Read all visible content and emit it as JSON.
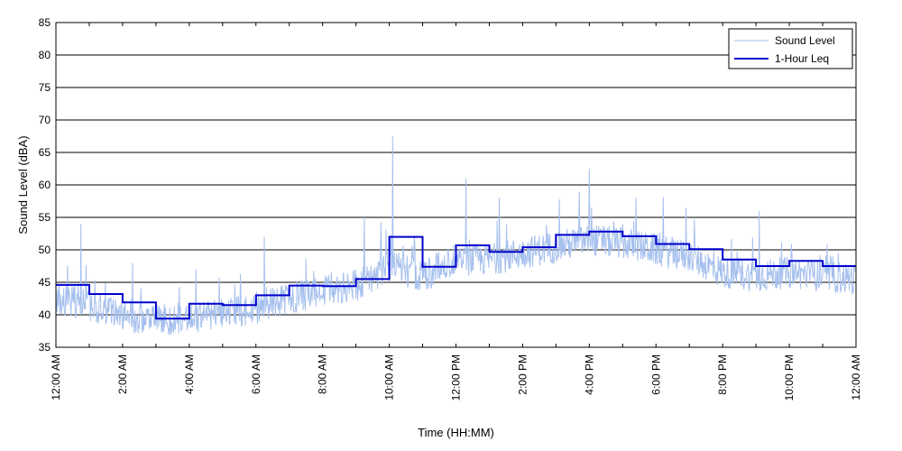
{
  "chart_data": {
    "type": "line",
    "xlabel": "Time (HH:MM)",
    "ylabel": "Sound Level (dBA)",
    "ylim": [
      35,
      85
    ],
    "yticks": [
      35,
      40,
      45,
      50,
      55,
      60,
      65,
      70,
      75,
      80,
      85
    ],
    "xlim_hours": [
      0,
      24
    ],
    "xtick_hours": [
      0,
      2,
      4,
      6,
      8,
      10,
      12,
      14,
      16,
      18,
      20,
      22,
      24
    ],
    "xtick_labels": [
      "12:00 AM",
      "2:00 AM",
      "4:00 AM",
      "6:00 AM",
      "8:00 AM",
      "10:00 AM",
      "12:00 PM",
      "2:00 PM",
      "4:00 PM",
      "6:00 PM",
      "8:00 PM",
      "10:00 PM",
      "12:00 AM"
    ],
    "grid": "horizontal",
    "legend_position": "top-right",
    "series": [
      {
        "name": "Sound Level",
        "color": "#a6c0ee",
        "hourly_base": [
          42.5,
          41.5,
          40.0,
          39.0,
          39.5,
          40.0,
          41.0,
          42.5,
          43.5,
          44.5,
          47.5,
          46.0,
          48.5,
          48.5,
          49.5,
          50.5,
          51.5,
          51.0,
          50.0,
          49.0,
          46.5,
          46.0,
          46.5,
          46.0,
          45.5
        ],
        "peaks": [
          {
            "hour": 0.75,
            "value": 54
          },
          {
            "hour": 2.3,
            "value": 48
          },
          {
            "hour": 4.2,
            "value": 47
          },
          {
            "hour": 6.25,
            "value": 52
          },
          {
            "hour": 9.25,
            "value": 55
          },
          {
            "hour": 10.1,
            "value": 67.5
          },
          {
            "hour": 12.3,
            "value": 61
          },
          {
            "hour": 13.3,
            "value": 58
          },
          {
            "hour": 15.7,
            "value": 59
          },
          {
            "hour": 16.0,
            "value": 62.5
          },
          {
            "hour": 17.4,
            "value": 58
          },
          {
            "hour": 18.9,
            "value": 56.5
          },
          {
            "hour": 21.1,
            "value": 56
          }
        ]
      },
      {
        "name": "1-Hour Leq",
        "color": "#0000cc",
        "hours": [
          0,
          1,
          2,
          3,
          4,
          5,
          6,
          7,
          8,
          9,
          10,
          11,
          12,
          13,
          14,
          15,
          16,
          17,
          18,
          19,
          20,
          21,
          22,
          23
        ],
        "values": [
          44.6,
          43.2,
          41.9,
          39.4,
          41.7,
          41.5,
          43.0,
          44.5,
          44.4,
          45.5,
          52.0,
          47.4,
          50.7,
          49.7,
          50.4,
          52.3,
          52.8,
          52.1,
          50.9,
          50.1,
          48.5,
          47.5,
          48.3,
          47.5
        ]
      }
    ]
  }
}
